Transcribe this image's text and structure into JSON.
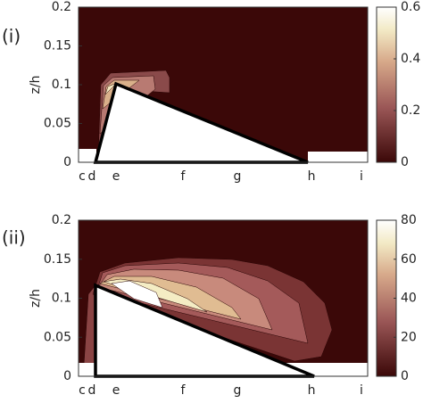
{
  "chart_data": [
    {
      "type": "contour",
      "panel_label": "(i)",
      "ylabel": "z/h",
      "categories": [
        "c",
        "d",
        "e",
        "f",
        "g",
        "h",
        "i"
      ],
      "ylim": [
        0,
        0.2
      ],
      "yticks": [
        0,
        0.05,
        0.1,
        0.15,
        0.2
      ],
      "colorbar": {
        "lim": [
          0,
          0.6
        ],
        "ticks": [
          0,
          0.2,
          0.4,
          0.6
        ]
      }
    },
    {
      "type": "contour",
      "panel_label": "(ii)",
      "ylabel": "z/h",
      "categories": [
        "c",
        "d",
        "e",
        "f",
        "g",
        "h",
        "i"
      ],
      "ylim": [
        0,
        0.2
      ],
      "yticks": [
        0,
        0.05,
        0.1,
        0.15,
        0.2
      ],
      "colorbar": {
        "lim": [
          0,
          80
        ],
        "ticks": [
          0,
          20,
          40,
          60,
          80
        ]
      }
    }
  ]
}
